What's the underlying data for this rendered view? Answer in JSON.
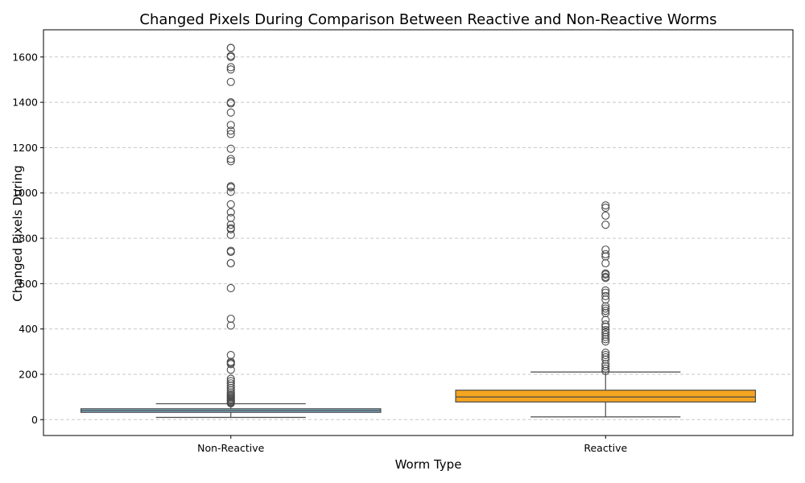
{
  "chart_data": {
    "type": "box",
    "title": "Changed Pixels During Comparison Between Reactive and Non-Reactive Worms",
    "xlabel": "Worm Type",
    "ylabel": "Changed Pixels During",
    "ylim": [
      -70,
      1720
    ],
    "yticks": [
      0,
      200,
      400,
      600,
      800,
      1000,
      1200,
      1400,
      1600
    ],
    "grid": "y-dashed",
    "categories": [
      "Non-Reactive",
      "Reactive"
    ],
    "boxes": [
      {
        "category": "Non-Reactive",
        "color": "#87bdd8",
        "whisker_low": 10,
        "q1": 32,
        "median": 40,
        "q3": 48,
        "whisker_high": 70,
        "outliers": [
          1640,
          1640,
          1605,
          1600,
          1555,
          1545,
          1490,
          1400,
          1395,
          1355,
          1300,
          1275,
          1260,
          1195,
          1150,
          1140,
          1030,
          1025,
          1005,
          950,
          915,
          890,
          860,
          845,
          840,
          815,
          745,
          740,
          690,
          690,
          580,
          445,
          415,
          285,
          255,
          250,
          245,
          220,
          180,
          170,
          160,
          150,
          140,
          130,
          120,
          112,
          105,
          100,
          95,
          90,
          85,
          80,
          76,
          72
        ]
      },
      {
        "category": "Reactive",
        "color": "#f5a51e",
        "whisker_low": 12,
        "q1": 78,
        "median": 100,
        "q3": 130,
        "whisker_high": 210,
        "outliers": [
          945,
          935,
          900,
          860,
          750,
          730,
          720,
          690,
          645,
          640,
          630,
          625,
          570,
          560,
          545,
          530,
          500,
          490,
          480,
          470,
          440,
          420,
          410,
          395,
          385,
          375,
          365,
          355,
          345,
          295,
          285,
          275,
          265,
          245,
          235,
          225,
          215
        ]
      }
    ]
  }
}
